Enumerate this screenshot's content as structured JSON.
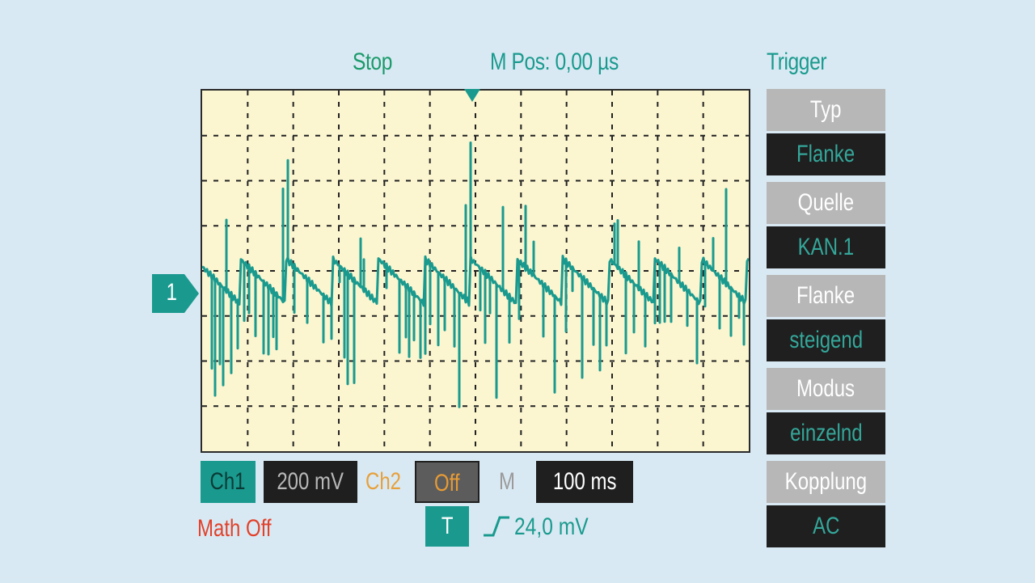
{
  "header": {
    "status": "Stop",
    "m_pos": "M Pos: 0,00 µs",
    "trigger_title": "Trigger"
  },
  "channel_marker": "1",
  "trigger_menu": [
    {
      "label": "Typ",
      "value": "Flanke"
    },
    {
      "label": "Quelle",
      "value": "KAN.1"
    },
    {
      "label": "Flanke",
      "value": "steigend"
    },
    {
      "label": "Modus",
      "value": "einzelnd"
    },
    {
      "label": "Kopplung",
      "value": "AC"
    }
  ],
  "bottom_bar": {
    "ch1": "Ch1",
    "ch1_scale": "200 mV",
    "ch2": "Ch2",
    "ch2_state": "Off",
    "m": "M",
    "timebase": "100 ms",
    "math": "Math Off",
    "trigger_button": "T",
    "trigger_level": "24,0 mV"
  },
  "colors": {
    "trace": "#1a9a8e",
    "screen_bg": "#fbf5d0",
    "page_bg": "#d9e9f3",
    "panel_head": "#b7b7b7",
    "panel_value": "#1f1f1f"
  },
  "icons": {
    "channel_marker": "arrow-right-tag-icon",
    "trigger_position": "triangle-down-icon",
    "edge": "rising-edge-icon"
  }
}
